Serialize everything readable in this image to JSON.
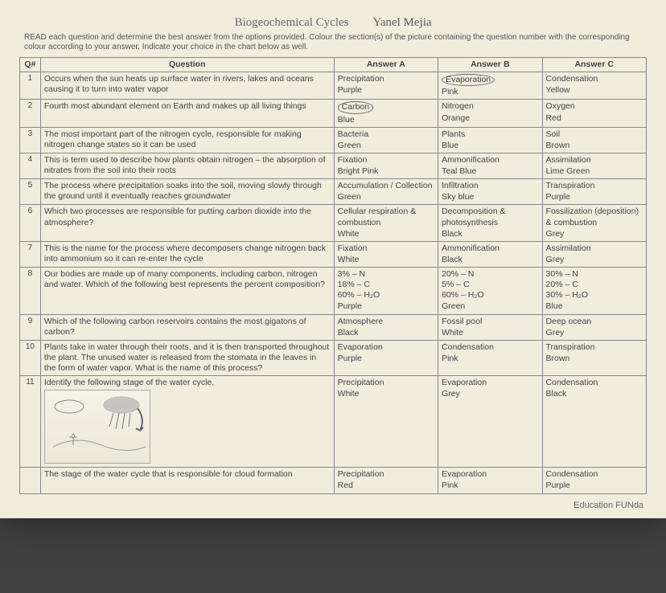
{
  "header": {
    "title": "Biogeochemical Cycles",
    "studentName": "Yanel Mejia"
  },
  "instructions": "READ each question and determine the best answer from the options provided. Colour the section(s) of the picture containing the question number with the corresponding colour according to your answer. Indicate your choice in the chart below as well.",
  "columns": {
    "qn": "Q#",
    "question": "Question",
    "a": "Answer A",
    "b": "Answer B",
    "c": "Answer C"
  },
  "rows": [
    {
      "n": "1",
      "q": "Occurs when the sun heats up surface water in rivers, lakes and oceans causing it to turn into water vapor",
      "a": {
        "top": "Precipitation",
        "bot": "Purple"
      },
      "b": {
        "top": "Evaporation",
        "bot": "Pink",
        "circled": true
      },
      "c": {
        "top": "Condensation",
        "bot": "Yellow"
      }
    },
    {
      "n": "2",
      "q": "Fourth most abundant element on Earth and makes up all living things",
      "a": {
        "top": "Carbon",
        "bot": "Blue",
        "circled": true
      },
      "b": {
        "top": "Nitrogen",
        "bot": "Orange"
      },
      "c": {
        "top": "Oxygen",
        "bot": "Red"
      }
    },
    {
      "n": "3",
      "q": "The most important part of the nitrogen cycle, responsible for making nitrogen change states so it can be used",
      "a": {
        "top": "Bacteria",
        "bot": "Green"
      },
      "b": {
        "top": "Plants",
        "bot": "Blue"
      },
      "c": {
        "top": "Soil",
        "bot": "Brown"
      }
    },
    {
      "n": "4",
      "q": "This is term used to describe how plants obtain nitrogen – the absorption of nitrates from the soil into their roots",
      "a": {
        "top": "Fixation",
        "bot": "Bright Pink"
      },
      "b": {
        "top": "Ammonification",
        "bot": "Teal Blue"
      },
      "c": {
        "top": "Assimilation",
        "bot": "Lime Green"
      }
    },
    {
      "n": "5",
      "q": "The process where precipitation soaks into the soil, moving slowly through the ground until it eventually reaches groundwater",
      "a": {
        "top": "Accumulation / Collection",
        "bot": "Green"
      },
      "b": {
        "top": "Infiltration",
        "bot": "Sky blue"
      },
      "c": {
        "top": "Transpiration",
        "bot": "Purple"
      }
    },
    {
      "n": "6",
      "q": "Which two processes are responsible for putting carbon dioxide into the atmosphere?",
      "a": {
        "top": "Cellular respiration & combustion",
        "bot": "White"
      },
      "b": {
        "top": "Decomposition & photosynthesis",
        "bot": "Black"
      },
      "c": {
        "top": "Fossilization (deposition) & combustion",
        "bot": "Grey"
      }
    },
    {
      "n": "7",
      "q": "This is the name for the process where decomposers change nitrogen back into ammonium so it can re-enter the cycle",
      "a": {
        "top": "Fixation",
        "bot": "White"
      },
      "b": {
        "top": "Ammonification",
        "bot": "Black"
      },
      "c": {
        "top": "Assimilation",
        "bot": "Grey"
      }
    },
    {
      "n": "8",
      "q": "Our bodies are made up of many components, including carbon, nitrogen and water. Which of the following best represents the percent composition?",
      "a": {
        "top": "3% – N\n18% – C\n60% – H₂O",
        "bot": "Purple"
      },
      "b": {
        "top": "20% – N\n5% – C\n60% – H₂O",
        "bot": "Green"
      },
      "c": {
        "top": "30% – N\n20% – C\n30% – H₂O",
        "bot": "Blue"
      }
    },
    {
      "n": "9",
      "q": "Which of the following carbon reservoirs contains the most gigatons of carbon?",
      "a": {
        "top": "Atmosphere",
        "bot": "Black"
      },
      "b": {
        "top": "Fossil pool",
        "bot": "White"
      },
      "c": {
        "top": "Deep ocean",
        "bot": "Grey"
      }
    },
    {
      "n": "10",
      "q": "Plants take in water through their roots, and it is then transported throughout the plant. The unused water is released from the stomata in the leaves in the form of water vapor. What is the name of this process?",
      "a": {
        "top": "Evaporation",
        "bot": "Purple"
      },
      "b": {
        "top": "Condensation",
        "bot": "Pink"
      },
      "c": {
        "top": "Transpiration",
        "bot": "Brown"
      }
    },
    {
      "n": "11",
      "q": "Identify the following stage of the water cycle.",
      "a": {
        "top": "Precipitation",
        "bot": "White"
      },
      "b": {
        "top": "Evaporation",
        "bot": "Grey"
      },
      "c": {
        "top": "Condensation",
        "bot": "Black"
      },
      "diagram": true
    },
    {
      "n": "",
      "q": "The stage of the water cycle that is responsible for cloud formation",
      "a": {
        "top": "Precipitation",
        "bot": "Red"
      },
      "b": {
        "top": "Evaporation",
        "bot": "Pink"
      },
      "c": {
        "top": "Condensation",
        "bot": "Purple"
      }
    }
  ],
  "footer": "Education FUNda"
}
